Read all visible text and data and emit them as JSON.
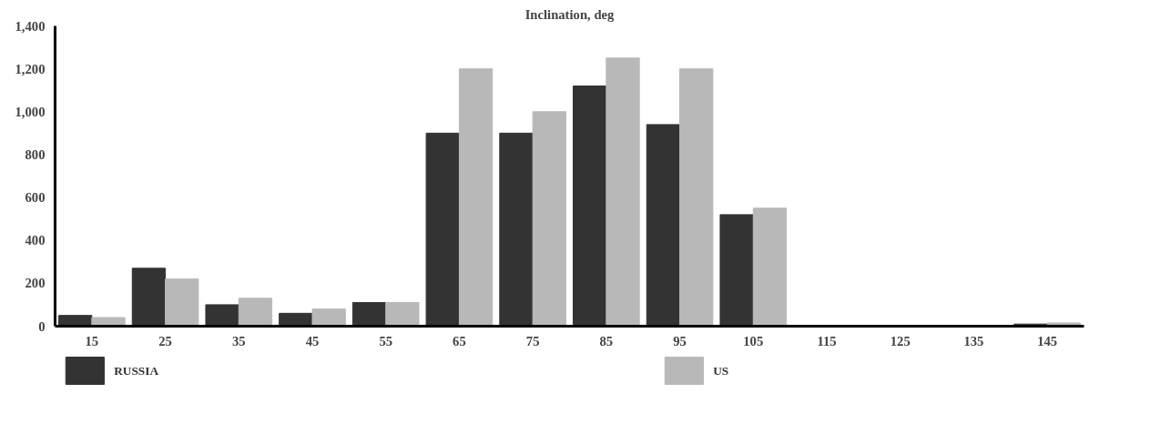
{
  "chart_data": {
    "type": "bar",
    "title": "Inclination, deg",
    "categories": [
      "15",
      "25",
      "35",
      "45",
      "55",
      "65",
      "75",
      "85",
      "95",
      "105",
      "115",
      "125",
      "135",
      "145"
    ],
    "series": [
      {
        "name": "RUSSIA",
        "color": "#333333",
        "values": [
          50,
          270,
          100,
          60,
          110,
          900,
          900,
          1120,
          940,
          520,
          null,
          null,
          null,
          10
        ]
      },
      {
        "name": "US",
        "color": "#b8b8b8",
        "values": [
          40,
          220,
          130,
          80,
          110,
          1200,
          1000,
          1250,
          1200,
          550,
          null,
          null,
          null,
          15
        ]
      }
    ],
    "ylim": [
      0,
      1400
    ],
    "yticks": [
      {
        "value": 0,
        "label": "0"
      },
      {
        "value": 200,
        "label": "200"
      },
      {
        "value": 400,
        "label": "400"
      },
      {
        "value": 600,
        "label": "600"
      },
      {
        "value": 800,
        "label": "800"
      },
      {
        "value": 1000,
        "label": "1,000"
      },
      {
        "value": 1200,
        "label": "1,200"
      },
      {
        "value": 1400,
        "label": "1,400"
      }
    ],
    "grid": false,
    "legend": "bottom"
  }
}
